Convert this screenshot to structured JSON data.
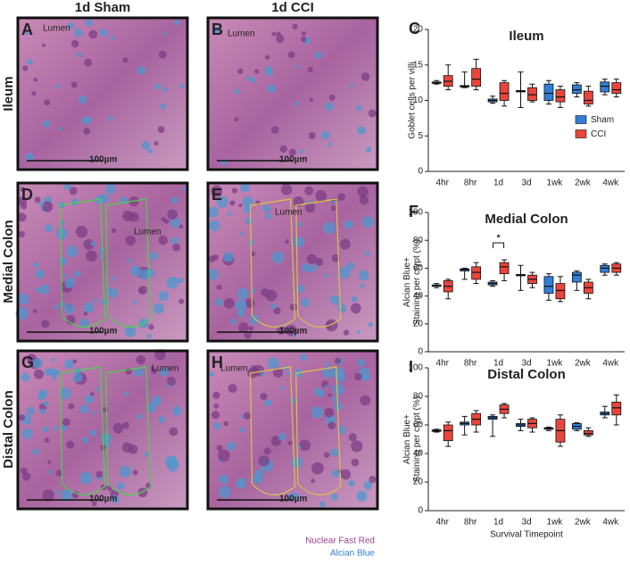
{
  "images": {
    "columns": [
      "1d Sham",
      "1d CCI"
    ],
    "rows": [
      "Ileum",
      "Medial Colon",
      "Distal Colon"
    ],
    "panels": [
      {
        "letter": "A",
        "lumen": "Lumen",
        "scale": "100µm"
      },
      {
        "letter": "B",
        "lumen": "Lumen",
        "scale": "100µm"
      },
      {
        "letter": "D",
        "lumen": "Lumen",
        "scale": "100µm"
      },
      {
        "letter": "E",
        "lumen": "Lumen",
        "scale": "100µm"
      },
      {
        "letter": "G",
        "lumen": "Lumen",
        "scale": "100µm"
      },
      {
        "letter": "H",
        "lumen": "Lumen",
        "scale": "100µm"
      }
    ],
    "stain_legend": [
      "Nuclear Fast Red",
      "Alcian Blue"
    ]
  },
  "chart_data": [
    {
      "type": "box",
      "letter": "C",
      "title": "Ileum",
      "ylabel": [
        "Goblet cells per villi"
      ],
      "categories": [
        "4hr",
        "8hr",
        "1d",
        "3d",
        "1wk",
        "2wk",
        "4wk"
      ],
      "ylim": [
        0,
        20
      ],
      "yticks": [
        0,
        5,
        10,
        15,
        20
      ],
      "legend": "right",
      "series": [
        {
          "name": "Sham",
          "color": "#2f7fd8",
          "values": [
            {
              "min": 12.3,
              "q1": 12.4,
              "median": 12.5,
              "q3": 12.6,
              "max": 12.8
            },
            {
              "min": 11.8,
              "q1": 11.9,
              "median": 12,
              "q3": 12.1,
              "max": 14
            },
            {
              "min": 9.6,
              "q1": 9.8,
              "median": 10,
              "q3": 10.2,
              "max": 10.6
            },
            {
              "min": 9,
              "q1": 11.2,
              "median": 11.3,
              "q3": 11.4,
              "max": 14
            },
            {
              "min": 9.5,
              "q1": 10,
              "median": 11,
              "q3": 12.3,
              "max": 12.8
            },
            {
              "min": 10.5,
              "q1": 11,
              "median": 11.5,
              "q3": 12.2,
              "max": 12.5
            },
            {
              "min": 10.8,
              "q1": 11.2,
              "median": 12,
              "q3": 12.6,
              "max": 13
            }
          ]
        },
        {
          "name": "CCI",
          "color": "#e8453c",
          "values": [
            {
              "min": 11.5,
              "q1": 12,
              "median": 12.7,
              "q3": 13.5,
              "max": 15
            },
            {
              "min": 11.5,
              "q1": 12,
              "median": 13,
              "q3": 14.5,
              "max": 15.8
            },
            {
              "min": 9.2,
              "q1": 10,
              "median": 11,
              "q3": 12.5,
              "max": 12.8
            },
            {
              "min": 9.8,
              "q1": 10,
              "median": 10.8,
              "q3": 11.8,
              "max": 12.3
            },
            {
              "min": 9,
              "q1": 9.8,
              "median": 10.5,
              "q3": 11.5,
              "max": 12
            },
            {
              "min": 9.2,
              "q1": 9.5,
              "median": 10,
              "q3": 11.3,
              "max": 12
            },
            {
              "min": 10.5,
              "q1": 11,
              "median": 11.5,
              "q3": 12.5,
              "max": 13
            }
          ]
        }
      ]
    },
    {
      "type": "box",
      "letter": "F",
      "title": "Medial Colon",
      "ylabel": [
        "Alcian Blue+",
        "Staining per crypt (%)"
      ],
      "categories": [
        "4hr",
        "8hr",
        "1d",
        "3d",
        "1wk",
        "2wk",
        "4wk"
      ],
      "ylim": [
        0,
        100
      ],
      "yticks": [
        0,
        20,
        40,
        60,
        80,
        100
      ],
      "annotation": "*",
      "series": [
        {
          "color": "#2f7fd8",
          "values": [
            {
              "min": 46,
              "q1": 47,
              "median": 47.5,
              "q3": 48,
              "max": 49
            },
            {
              "min": 52,
              "q1": 58,
              "median": 59,
              "q3": 59.5,
              "max": 60
            },
            {
              "min": 47,
              "q1": 48,
              "median": 49,
              "q3": 50,
              "max": 51
            },
            {
              "min": 44,
              "q1": 54.5,
              "median": 55,
              "q3": 55.5,
              "max": 62
            },
            {
              "min": 37,
              "q1": 42,
              "median": 47,
              "q3": 54,
              "max": 56
            },
            {
              "min": 44,
              "q1": 50,
              "median": 55,
              "q3": 57,
              "max": 58
            },
            {
              "min": 55,
              "q1": 57,
              "median": 60,
              "q3": 62,
              "max": 63
            }
          ]
        },
        {
          "color": "#e8453c",
          "values": [
            {
              "min": 38,
              "q1": 43,
              "median": 47,
              "q3": 51,
              "max": 52
            },
            {
              "min": 49,
              "q1": 52,
              "median": 57,
              "q3": 61,
              "max": 64
            },
            {
              "min": 51,
              "q1": 56,
              "median": 61,
              "q3": 64,
              "max": 66
            },
            {
              "min": 46,
              "q1": 49,
              "median": 52,
              "q3": 55,
              "max": 57
            },
            {
              "min": 36,
              "q1": 38,
              "median": 44,
              "q3": 49,
              "max": 54
            },
            {
              "min": 38,
              "q1": 42,
              "median": 46,
              "q3": 50,
              "max": 52
            },
            {
              "min": 55,
              "q1": 57,
              "median": 60,
              "q3": 63,
              "max": 64
            }
          ]
        }
      ]
    },
    {
      "type": "box",
      "letter": "I",
      "title": "Distal Colon",
      "ylabel": [
        "Alcian Blue+",
        "Staining per crypt (%)"
      ],
      "xlabel": "Survival Timepoint",
      "categories": [
        "4hr",
        "8hr",
        "1d",
        "3d",
        "1wk",
        "2wk",
        "4wk"
      ],
      "ylim": [
        0,
        100
      ],
      "yticks": [
        0,
        20,
        40,
        60,
        80,
        100
      ],
      "series": [
        {
          "color": "#2f7fd8",
          "values": [
            {
              "min": 55,
              "q1": 55.5,
              "median": 56,
              "q3": 56.5,
              "max": 57
            },
            {
              "min": 53,
              "q1": 60,
              "median": 61,
              "q3": 62,
              "max": 66
            },
            {
              "min": 52,
              "q1": 64,
              "median": 65,
              "q3": 66,
              "max": 67
            },
            {
              "min": 56,
              "q1": 59,
              "median": 60,
              "q3": 61,
              "max": 64
            },
            {
              "min": 56,
              "q1": 57,
              "median": 57.5,
              "q3": 58,
              "max": 58.5
            },
            {
              "min": 56,
              "q1": 57,
              "median": 59,
              "q3": 61,
              "max": 61.5
            },
            {
              "min": 65,
              "q1": 67,
              "median": 68,
              "q3": 69,
              "max": 73
            }
          ]
        },
        {
          "color": "#e8453c",
          "values": [
            {
              "min": 45,
              "q1": 49,
              "median": 56,
              "q3": 60,
              "max": 62
            },
            {
              "min": 55,
              "q1": 60,
              "median": 64,
              "q3": 68,
              "max": 70
            },
            {
              "min": 65,
              "q1": 68,
              "median": 71,
              "q3": 74,
              "max": 75
            },
            {
              "min": 55,
              "q1": 58,
              "median": 61,
              "q3": 64,
              "max": 65
            },
            {
              "min": 45,
              "q1": 48,
              "median": 56,
              "q3": 64,
              "max": 67
            },
            {
              "min": 52,
              "q1": 53,
              "median": 54,
              "q3": 56,
              "max": 58
            },
            {
              "min": 60,
              "q1": 67,
              "median": 72,
              "q3": 76,
              "max": 81
            }
          ]
        }
      ]
    }
  ]
}
